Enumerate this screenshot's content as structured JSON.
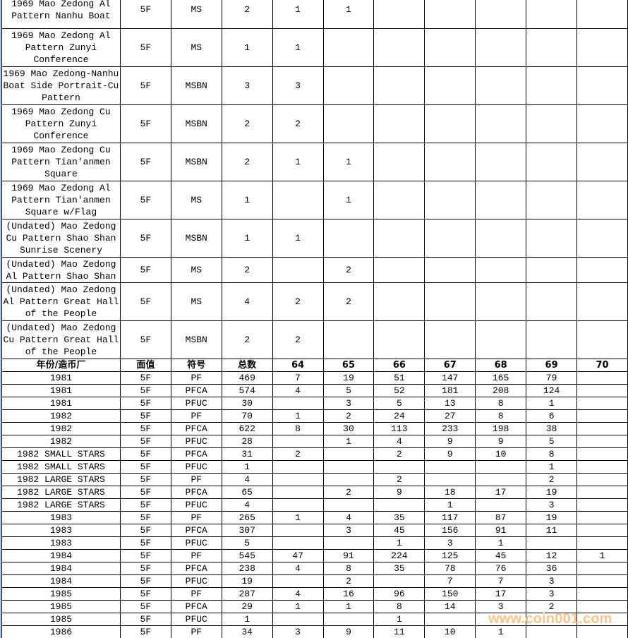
{
  "header": [
    "年份/造币厂",
    "面值",
    "符号",
    "总数",
    "64",
    "65",
    "66",
    "67",
    "68",
    "69",
    "70"
  ],
  "upper_rows": [
    {
      "name": "1969 Mao Zedong Al Pattern Nanhu Boat",
      "cells": [
        "5F",
        "MS",
        "2",
        "1",
        "1",
        "",
        "",
        "",
        "",
        ""
      ]
    },
    {
      "name": "1969 Mao Zedong Al Pattern Zunyi Conference",
      "cells": [
        "5F",
        "MS",
        "1",
        "1",
        "",
        "",
        "",
        "",
        "",
        ""
      ]
    },
    {
      "name": "1969 Mao Zedong-Nanhu Boat Side Portrait-Cu Pattern",
      "cells": [
        "5F",
        "MSBN",
        "3",
        "3",
        "",
        "",
        "",
        "",
        "",
        ""
      ]
    },
    {
      "name": "1969 Mao Zedong Cu Pattern Zunyi Conference",
      "cells": [
        "5F",
        "MSBN",
        "2",
        "2",
        "",
        "",
        "",
        "",
        "",
        ""
      ]
    },
    {
      "name": "1969 Mao Zedong Cu Pattern Tian'anmen Square",
      "cells": [
        "5F",
        "MSBN",
        "2",
        "1",
        "1",
        "",
        "",
        "",
        "",
        ""
      ]
    },
    {
      "name": "1969 Mao Zedong Al Pattern Tian'anmen Square w/Flag",
      "cells": [
        "5F",
        "MS",
        "1",
        "",
        "1",
        "",
        "",
        "",
        "",
        ""
      ]
    },
    {
      "name": "(Undated) Mao Zedong Cu Pattern Shao Shan Sunrise Scenery",
      "cells": [
        "5F",
        "MSBN",
        "1",
        "1",
        "",
        "",
        "",
        "",
        "",
        ""
      ]
    },
    {
      "name": "(Undated) Mao Zedong Al Pattern Shao Shan",
      "cells": [
        "5F",
        "MS",
        "2",
        "",
        "2",
        "",
        "",
        "",
        "",
        ""
      ]
    },
    {
      "name": "(Undated) Mao Zedong Al Pattern Great Hall of the People",
      "cells": [
        "5F",
        "MS",
        "4",
        "2",
        "2",
        "",
        "",
        "",
        "",
        ""
      ]
    },
    {
      "name": "(Undated) Mao Zedong Cu Pattern Great Hall of the People",
      "cells": [
        "5F",
        "MSBN",
        "2",
        "2",
        "",
        "",
        "",
        "",
        "",
        ""
      ]
    }
  ],
  "lower_rows": [
    [
      "1981",
      "5F",
      "PF",
      "469",
      "7",
      "19",
      "51",
      "147",
      "165",
      "79",
      ""
    ],
    [
      "1981",
      "5F",
      "PFCA",
      "574",
      "4",
      "5",
      "52",
      "181",
      "208",
      "124",
      ""
    ],
    [
      "1981",
      "5F",
      "PFUC",
      "30",
      "",
      "3",
      "5",
      "13",
      "8",
      "1",
      ""
    ],
    [
      "1982",
      "5F",
      "PF",
      "70",
      "1",
      "2",
      "24",
      "27",
      "8",
      "6",
      ""
    ],
    [
      "1982",
      "5F",
      "PFCA",
      "622",
      "8",
      "30",
      "113",
      "233",
      "198",
      "38",
      ""
    ],
    [
      "1982",
      "5F",
      "PFUC",
      "28",
      "",
      "1",
      "4",
      "9",
      "9",
      "5",
      ""
    ],
    [
      "1982 SMALL STARS",
      "5F",
      "PFCA",
      "31",
      "2",
      "",
      "2",
      "9",
      "10",
      "8",
      ""
    ],
    [
      "1982 SMALL STARS",
      "5F",
      "PFUC",
      "1",
      "",
      "",
      "",
      "",
      "",
      "1",
      ""
    ],
    [
      "1982 LARGE STARS",
      "5F",
      "PF",
      "4",
      "",
      "",
      "2",
      "",
      "",
      "2",
      ""
    ],
    [
      "1982 LARGE STARS",
      "5F",
      "PFCA",
      "65",
      "",
      "2",
      "9",
      "18",
      "17",
      "19",
      ""
    ],
    [
      "1982 LARGE STARS",
      "5F",
      "PFUC",
      "4",
      "",
      "",
      "",
      "1",
      "",
      "3",
      ""
    ],
    [
      "1983",
      "5F",
      "PF",
      "265",
      "1",
      "4",
      "35",
      "117",
      "87",
      "19",
      ""
    ],
    [
      "1983",
      "5F",
      "PFCA",
      "307",
      "",
      "3",
      "45",
      "156",
      "91",
      "11",
      ""
    ],
    [
      "1983",
      "5F",
      "PFUC",
      "5",
      "",
      "",
      "1",
      "3",
      "1",
      "",
      ""
    ],
    [
      "1984",
      "5F",
      "PF",
      "545",
      "47",
      "91",
      "224",
      "125",
      "45",
      "12",
      "1"
    ],
    [
      "1984",
      "5F",
      "PFCA",
      "238",
      "4",
      "8",
      "35",
      "78",
      "76",
      "36",
      ""
    ],
    [
      "1984",
      "5F",
      "PFUC",
      "19",
      "",
      "2",
      "",
      "7",
      "7",
      "3",
      ""
    ],
    [
      "1985",
      "5F",
      "PF",
      "287",
      "4",
      "16",
      "96",
      "150",
      "17",
      "3",
      ""
    ],
    [
      "1985",
      "5F",
      "PFCA",
      "29",
      "1",
      "1",
      "8",
      "14",
      "3",
      "2",
      ""
    ],
    [
      "1985",
      "5F",
      "PFUC",
      "1",
      "",
      "",
      "1",
      "",
      "",
      "",
      ""
    ],
    [
      "1986",
      "5F",
      "PF",
      "34",
      "3",
      "9",
      "11",
      "10",
      "1",
      "",
      ""
    ]
  ],
  "watermark": "www.coin001.com",
  "colors": {
    "grid": "#000000",
    "watermark": "#ffc487",
    "left_border": "#a9c4e6"
  }
}
